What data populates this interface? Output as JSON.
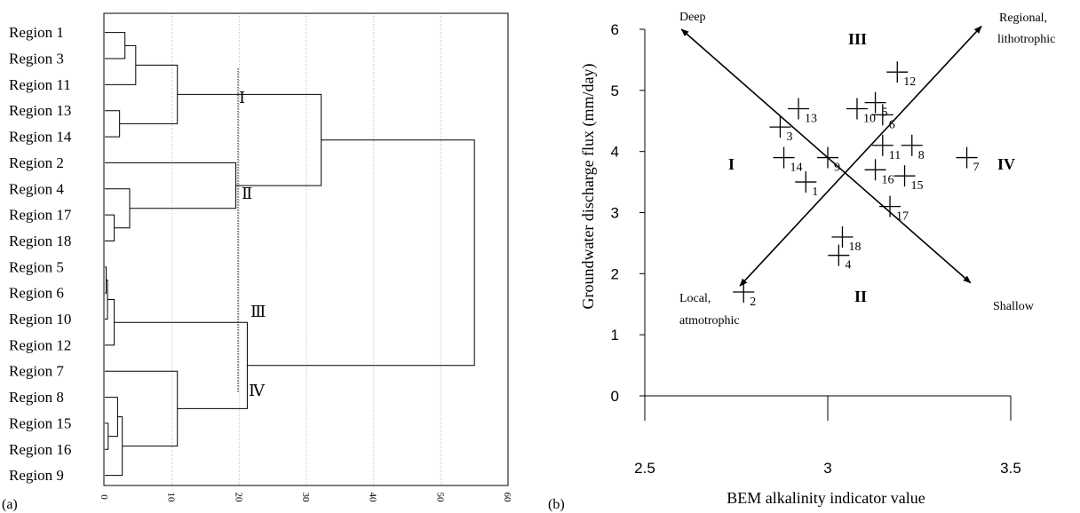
{
  "chart_data": [
    {
      "panel_label": "(a)",
      "type": "dendrogram",
      "leaves": [
        "Region  1",
        "Region  3",
        "Region 11",
        "Region 13",
        "Region 14",
        "Region  2",
        "Region  4",
        "Region 17",
        "Region 18",
        "Region  5",
        "Region  6",
        "Region 10",
        "Region 12",
        "Region  7",
        "Region  8",
        "Region 15",
        "Region 16",
        "Region  9"
      ],
      "xlim": [
        0,
        60
      ],
      "x_ticks": [
        "0",
        "10",
        "20",
        "30",
        "40",
        "50",
        "60"
      ],
      "grid": "vertical dotted",
      "merges": [
        {
          "children": [
            "L:0",
            "L:1"
          ],
          "height": 3.0
        },
        {
          "children": [
            "N:0",
            "L:2"
          ],
          "height": 4.6
        },
        {
          "children": [
            "L:3",
            "L:4"
          ],
          "height": 2.2
        },
        {
          "children": [
            "N:1",
            "N:2"
          ],
          "height": 10.8
        },
        {
          "children": [
            "L:7",
            "L:8"
          ],
          "height": 1.4
        },
        {
          "children": [
            "L:6",
            "N:4"
          ],
          "height": 3.7
        },
        {
          "children": [
            "L:5",
            "N:5"
          ],
          "height": 19.5
        },
        {
          "children": [
            "N:3",
            "N:6"
          ],
          "height": 32.2
        },
        {
          "children": [
            "L:9",
            "L:10"
          ],
          "height": 0.2
        },
        {
          "children": [
            "N:8",
            "L:11"
          ],
          "height": 0.4
        },
        {
          "children": [
            "N:9",
            "L:12"
          ],
          "height": 1.4
        },
        {
          "children": [
            "L:15",
            "L:16"
          ],
          "height": 0.5
        },
        {
          "children": [
            "L:14",
            "N:11"
          ],
          "height": 1.9
        },
        {
          "children": [
            "N:12",
            "L:17"
          ],
          "height": 2.6
        },
        {
          "children": [
            "L:13",
            "N:13"
          ],
          "height": 10.8
        },
        {
          "children": [
            "N:10",
            "N:14"
          ],
          "height": 21.2
        },
        {
          "children": [
            "N:7",
            "N:15"
          ],
          "height": 55.0
        }
      ],
      "cutoff": 20,
      "cluster_labels": [
        "Ⅰ",
        "Ⅱ",
        "Ⅲ",
        "Ⅳ"
      ]
    },
    {
      "panel_label": "(b)",
      "type": "scatter",
      "xlabel": "BEM alkalinity indicator value",
      "ylabel": "Groundwater discharge flux (mm/day)",
      "xlim": [
        2.5,
        3.5
      ],
      "ylim": [
        0,
        6
      ],
      "x_ticks": [
        "2.5",
        "3",
        "3.5"
      ],
      "y_ticks": [
        "0",
        "1",
        "2",
        "3",
        "4",
        "5",
        "6"
      ],
      "points": [
        {
          "label": "1",
          "x": 2.94,
          "y": 3.5
        },
        {
          "label": "2",
          "x": 2.77,
          "y": 1.7
        },
        {
          "label": "3",
          "x": 2.87,
          "y": 4.4
        },
        {
          "label": "4",
          "x": 3.03,
          "y": 2.3
        },
        {
          "label": "5",
          "x": 3.13,
          "y": 4.8
        },
        {
          "label": "6",
          "x": 3.15,
          "y": 4.6
        },
        {
          "label": "7",
          "x": 3.38,
          "y": 3.9
        },
        {
          "label": "8",
          "x": 3.23,
          "y": 4.1
        },
        {
          "label": "9",
          "x": 3.0,
          "y": 3.9
        },
        {
          "label": "10",
          "x": 3.08,
          "y": 4.7
        },
        {
          "label": "11",
          "x": 3.15,
          "y": 4.1
        },
        {
          "label": "12",
          "x": 3.19,
          "y": 5.3
        },
        {
          "label": "13",
          "x": 2.92,
          "y": 4.7
        },
        {
          "label": "14",
          "x": 2.88,
          "y": 3.9
        },
        {
          "label": "15",
          "x": 3.21,
          "y": 3.6
        },
        {
          "label": "16",
          "x": 3.13,
          "y": 3.7
        },
        {
          "label": "17",
          "x": 3.17,
          "y": 3.1
        },
        {
          "label": "18",
          "x": 3.04,
          "y": 2.6
        }
      ],
      "axis_arrows": [
        {
          "from_end": "Deep",
          "to_end": "Shallow",
          "from": [
            2.6,
            6.0
          ],
          "to": [
            3.39,
            1.85
          ]
        },
        {
          "from_end": "Local, atmotrophic",
          "to_end": "Regional, lithotrophic",
          "from": [
            2.76,
            1.8
          ],
          "to": [
            3.42,
            6.05
          ]
        }
      ],
      "end_labels": {
        "deep": "Deep",
        "shallow": "Shallow",
        "local": [
          "Local,",
          "atmotrophic"
        ],
        "regional": [
          "Regional,",
          "lithotrophic"
        ]
      },
      "quadrant_labels": [
        "I",
        "II",
        "III",
        "IV"
      ]
    }
  ]
}
